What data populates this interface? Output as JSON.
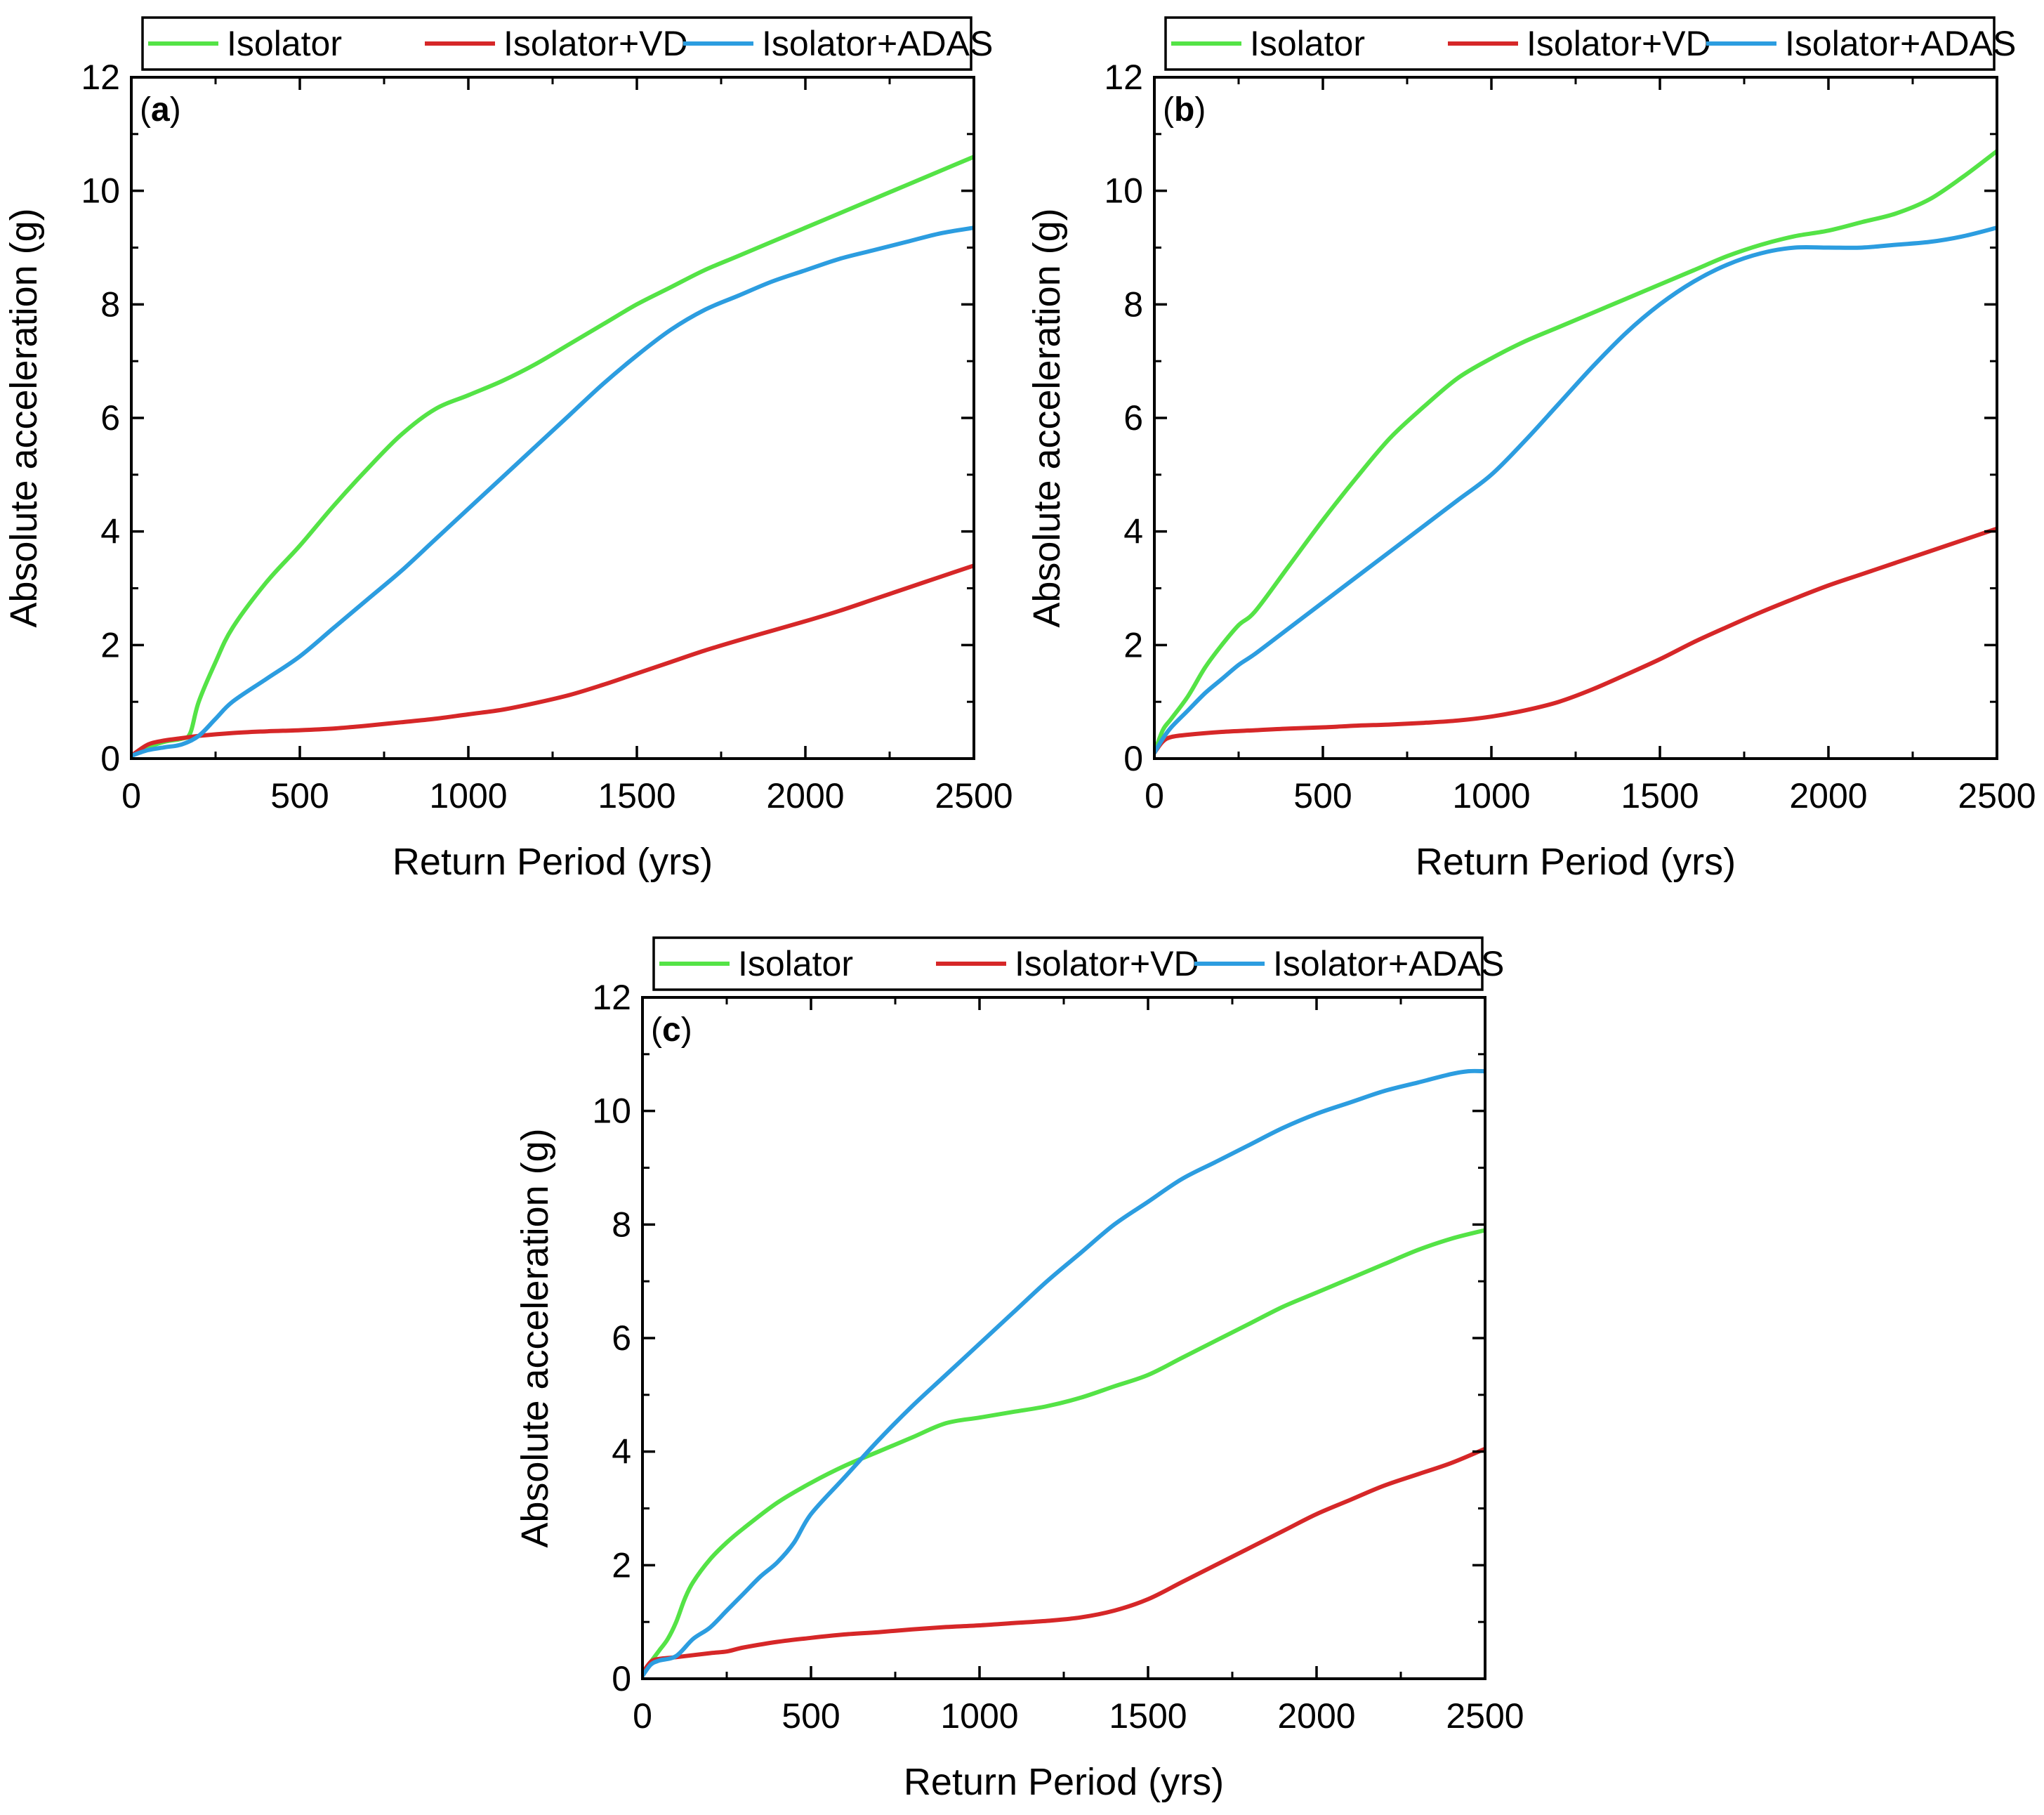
{
  "colors": {
    "green": "#54e346",
    "red": "#d62728",
    "blue": "#2c9de0"
  },
  "chart_data": [
    {
      "type": "line",
      "panel_label": "a",
      "xlabel": "Return Period (yrs)",
      "ylabel": "Absolute acceleration (g)",
      "xlim": [
        0,
        2500
      ],
      "ylim": [
        0,
        12
      ],
      "xticks": [
        0,
        500,
        1000,
        1500,
        2000,
        2500
      ],
      "yticks": [
        0,
        2,
        4,
        6,
        8,
        10,
        12
      ],
      "grid": false,
      "legend": "top-outside",
      "series": [
        {
          "name": "Isolator",
          "color": "green",
          "x": [
            0,
            50,
            100,
            150,
            175,
            200,
            250,
            300,
            400,
            500,
            600,
            700,
            800,
            900,
            1000,
            1100,
            1200,
            1300,
            1400,
            1500,
            1600,
            1700,
            1800,
            1900,
            2000,
            2100,
            2200,
            2300,
            2400,
            2500
          ],
          "y": [
            0.05,
            0.2,
            0.3,
            0.35,
            0.45,
            1.0,
            1.7,
            2.3,
            3.1,
            3.75,
            4.45,
            5.1,
            5.7,
            6.15,
            6.4,
            6.65,
            6.95,
            7.3,
            7.65,
            8.0,
            8.3,
            8.6,
            8.85,
            9.1,
            9.35,
            9.6,
            9.85,
            10.1,
            10.35,
            10.6
          ]
        },
        {
          "name": "Isolator+VD",
          "color": "red",
          "x": [
            0,
            50,
            100,
            150,
            200,
            300,
            400,
            500,
            600,
            700,
            800,
            900,
            1000,
            1100,
            1200,
            1300,
            1400,
            1500,
            1600,
            1700,
            1800,
            1900,
            2000,
            2100,
            2200,
            2300,
            2400,
            2500
          ],
          "y": [
            0.05,
            0.25,
            0.32,
            0.36,
            0.4,
            0.45,
            0.48,
            0.5,
            0.53,
            0.58,
            0.64,
            0.7,
            0.78,
            0.86,
            0.98,
            1.12,
            1.3,
            1.5,
            1.7,
            1.9,
            2.08,
            2.25,
            2.42,
            2.6,
            2.8,
            3.0,
            3.2,
            3.4
          ]
        },
        {
          "name": "Isolator+ADAS",
          "color": "blue",
          "x": [
            0,
            50,
            100,
            150,
            200,
            250,
            300,
            400,
            500,
            600,
            700,
            800,
            900,
            1000,
            1100,
            1200,
            1300,
            1400,
            1500,
            1600,
            1700,
            1800,
            1900,
            2000,
            2100,
            2200,
            2300,
            2400,
            2500
          ],
          "y": [
            0.05,
            0.15,
            0.2,
            0.25,
            0.4,
            0.7,
            1.0,
            1.4,
            1.8,
            2.3,
            2.8,
            3.3,
            3.85,
            4.4,
            4.95,
            5.5,
            6.05,
            6.6,
            7.1,
            7.55,
            7.9,
            8.15,
            8.4,
            8.6,
            8.8,
            8.95,
            9.1,
            9.25,
            9.35
          ]
        }
      ]
    },
    {
      "type": "line",
      "panel_label": "b",
      "xlabel": "Return Period (yrs)",
      "ylabel": "Absolute acceleration (g)",
      "xlim": [
        0,
        2500
      ],
      "ylim": [
        0,
        12
      ],
      "xticks": [
        0,
        500,
        1000,
        1500,
        2000,
        2500
      ],
      "yticks": [
        0,
        2,
        4,
        6,
        8,
        10,
        12
      ],
      "grid": false,
      "legend": "top-outside",
      "series": [
        {
          "name": "Isolator",
          "color": "green",
          "x": [
            0,
            25,
            50,
            100,
            150,
            200,
            250,
            300,
            400,
            500,
            600,
            700,
            800,
            900,
            1000,
            1100,
            1200,
            1300,
            1400,
            1500,
            1600,
            1700,
            1800,
            1900,
            2000,
            2100,
            2200,
            2300,
            2400,
            2500
          ],
          "y": [
            0.1,
            0.5,
            0.7,
            1.1,
            1.6,
            2.0,
            2.35,
            2.6,
            3.4,
            4.2,
            4.95,
            5.65,
            6.2,
            6.7,
            7.05,
            7.35,
            7.6,
            7.85,
            8.1,
            8.35,
            8.6,
            8.85,
            9.05,
            9.2,
            9.3,
            9.45,
            9.6,
            9.85,
            10.25,
            10.7
          ]
        },
        {
          "name": "Isolator+VD",
          "color": "red",
          "x": [
            0,
            25,
            50,
            100,
            200,
            300,
            400,
            500,
            600,
            700,
            800,
            900,
            1000,
            1100,
            1200,
            1300,
            1400,
            1500,
            1600,
            1700,
            1800,
            1900,
            2000,
            2100,
            2200,
            2300,
            2400,
            2500
          ],
          "y": [
            0.1,
            0.3,
            0.38,
            0.42,
            0.47,
            0.5,
            0.53,
            0.55,
            0.58,
            0.6,
            0.63,
            0.67,
            0.74,
            0.85,
            1.0,
            1.22,
            1.48,
            1.75,
            2.05,
            2.32,
            2.58,
            2.82,
            3.05,
            3.25,
            3.45,
            3.65,
            3.85,
            4.05
          ]
        },
        {
          "name": "Isolator+ADAS",
          "color": "blue",
          "x": [
            0,
            25,
            50,
            100,
            150,
            200,
            250,
            300,
            400,
            500,
            600,
            700,
            800,
            900,
            1000,
            1100,
            1200,
            1300,
            1400,
            1500,
            1600,
            1700,
            1800,
            1900,
            2000,
            2100,
            2200,
            2300,
            2400,
            2500
          ],
          "y": [
            0.1,
            0.35,
            0.55,
            0.85,
            1.15,
            1.4,
            1.65,
            1.85,
            2.3,
            2.75,
            3.2,
            3.65,
            4.1,
            4.55,
            5.0,
            5.6,
            6.25,
            6.9,
            7.5,
            8.0,
            8.4,
            8.7,
            8.9,
            9.0,
            9.0,
            9.0,
            9.05,
            9.1,
            9.2,
            9.35
          ]
        }
      ]
    },
    {
      "type": "line",
      "panel_label": "c",
      "xlabel": "Return Period (yrs)",
      "ylabel": "Absolute acceleration (g)",
      "xlim": [
        0,
        2500
      ],
      "ylim": [
        0,
        12
      ],
      "xticks": [
        0,
        500,
        1000,
        1500,
        2000,
        2500
      ],
      "yticks": [
        0,
        2,
        4,
        6,
        8,
        10,
        12
      ],
      "grid": false,
      "legend": "top-outside",
      "series": [
        {
          "name": "Isolator",
          "color": "green",
          "x": [
            0,
            25,
            50,
            75,
            100,
            125,
            150,
            200,
            250,
            300,
            400,
            500,
            600,
            700,
            800,
            900,
            1000,
            1100,
            1200,
            1300,
            1400,
            1500,
            1600,
            1700,
            1800,
            1900,
            2000,
            2100,
            2200,
            2300,
            2400,
            2500
          ],
          "y": [
            0.1,
            0.3,
            0.5,
            0.7,
            1.0,
            1.4,
            1.7,
            2.1,
            2.4,
            2.65,
            3.1,
            3.45,
            3.75,
            4.0,
            4.25,
            4.5,
            4.6,
            4.7,
            4.8,
            4.95,
            5.15,
            5.35,
            5.65,
            5.95,
            6.25,
            6.55,
            6.8,
            7.05,
            7.3,
            7.55,
            7.75,
            7.9
          ]
        },
        {
          "name": "Isolator+VD",
          "color": "red",
          "x": [
            0,
            25,
            50,
            100,
            200,
            250,
            300,
            400,
            500,
            600,
            700,
            800,
            900,
            1000,
            1100,
            1200,
            1300,
            1400,
            1500,
            1600,
            1700,
            1800,
            1900,
            2000,
            2100,
            2200,
            2300,
            2400,
            2500
          ],
          "y": [
            0.1,
            0.3,
            0.35,
            0.38,
            0.45,
            0.48,
            0.55,
            0.65,
            0.72,
            0.78,
            0.82,
            0.87,
            0.91,
            0.94,
            0.98,
            1.02,
            1.08,
            1.2,
            1.4,
            1.7,
            2.0,
            2.3,
            2.6,
            2.9,
            3.15,
            3.4,
            3.6,
            3.8,
            4.05
          ]
        },
        {
          "name": "Isolator+ADAS",
          "color": "blue",
          "x": [
            0,
            25,
            50,
            100,
            150,
            200,
            250,
            300,
            350,
            400,
            450,
            500,
            600,
            700,
            800,
            900,
            1000,
            1100,
            1200,
            1300,
            1400,
            1500,
            1600,
            1700,
            1800,
            1900,
            2000,
            2100,
            2200,
            2300,
            2400,
            2450,
            2500
          ],
          "y": [
            0.05,
            0.25,
            0.32,
            0.4,
            0.7,
            0.9,
            1.2,
            1.5,
            1.8,
            2.05,
            2.4,
            2.9,
            3.55,
            4.2,
            4.8,
            5.35,
            5.9,
            6.45,
            7.0,
            7.5,
            8.0,
            8.4,
            8.8,
            9.1,
            9.4,
            9.7,
            9.95,
            10.15,
            10.35,
            10.5,
            10.65,
            10.7,
            10.7
          ]
        }
      ]
    }
  ]
}
